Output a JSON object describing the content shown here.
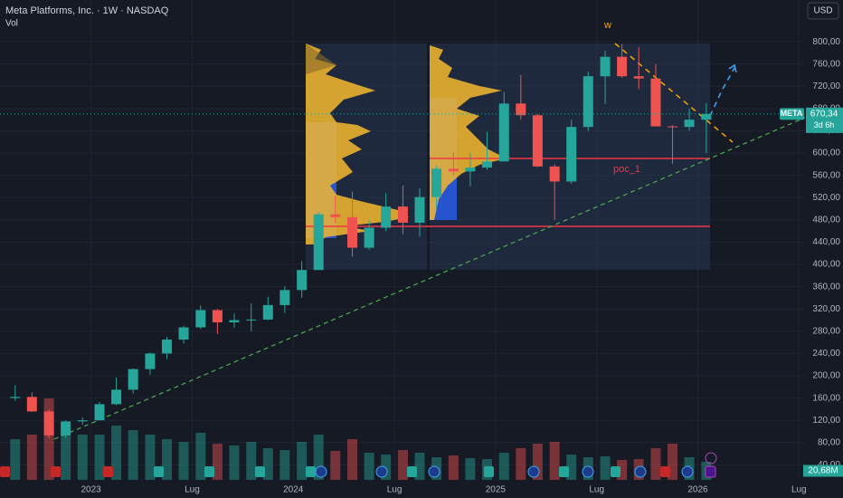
{
  "chart_data": {
    "type": "candlestick",
    "title": "Meta Platforms, Inc. · 1W · NASDAQ",
    "volume_title": "Vol",
    "currency": "USD",
    "symbol": "META",
    "countdown": "3d 6h",
    "annotations": [
      "poc_1",
      "w"
    ],
    "x": [
      2022.625,
      2022.708,
      2022.792,
      2022.875,
      2022.958,
      2023.042,
      2023.125,
      2023.208,
      2023.292,
      2023.375,
      2023.458,
      2023.542,
      2023.625,
      2023.708,
      2023.792,
      2023.875,
      2023.958,
      2024.042,
      2024.125,
      2024.208,
      2024.292,
      2024.375,
      2024.458,
      2024.542,
      2024.625,
      2024.708,
      2024.792,
      2024.875,
      2024.958,
      2025.042,
      2025.125,
      2025.208,
      2025.292,
      2025.375,
      2025.458,
      2025.542,
      2025.625,
      2025.708,
      2025.792,
      2025.875,
      2025.958,
      2026.042
    ],
    "series": [
      {
        "name": "META",
        "open": [
          160,
          162,
          136,
          93,
          118,
          120,
          149,
          175,
          212,
          240,
          265,
          287,
          318,
          296,
          300,
          301,
          327,
          354,
          390,
          490,
          485,
          430,
          466,
          504,
          475,
          521,
          572,
          567,
          574,
          585,
          689,
          668,
          576,
          549,
          647,
          738,
          773,
          738,
          734,
          648,
          647,
          660
        ],
        "high": [
          183,
          170,
          140,
          120,
          125,
          153,
          197,
          213,
          242,
          270,
          290,
          326,
          320,
          312,
          330,
          342,
          361,
          406,
          494,
          523,
          531,
          480,
          528,
          542,
          537,
          577,
          602,
          600,
          638,
          710,
          740,
          670,
          580,
          660,
          746,
          784,
          796,
          790,
          760,
          650,
          680,
          690
        ],
        "low": [
          155,
          135,
          88,
          88,
          112,
          120,
          147,
          168,
          202,
          230,
          258,
          284,
          275,
          286,
          280,
          300,
          313,
          340,
          393,
          474,
          414,
          426,
          460,
          454,
          450,
          500,
          560,
          540,
          570,
          590,
          660,
          575,
          480,
          545,
          640,
          688,
          735,
          715,
          648,
          581,
          640,
          600
        ],
        "close": [
          162,
          136,
          93,
          118,
          120,
          149,
          175,
          212,
          240,
          265,
          287,
          318,
          296,
          300,
          301,
          327,
          354,
          390,
          490,
          485,
          430,
          466,
          504,
          475,
          521,
          572,
          567,
          574,
          585,
          689,
          668,
          576,
          549,
          647,
          738,
          773,
          738,
          734,
          648,
          647,
          660,
          670.34
        ]
      }
    ],
    "volume": {
      "values": [
        450,
        500,
        900,
        600,
        500,
        500,
        600,
        550,
        500,
        450,
        420,
        520,
        400,
        380,
        420,
        350,
        330,
        420,
        500,
        320,
        450,
        300,
        280,
        330,
        300,
        250,
        270,
        240,
        230,
        300,
        350,
        400,
        420,
        280,
        250,
        260,
        220,
        230,
        350,
        400,
        250,
        200
      ],
      "last": {
        "value": 20.68,
        "label": "20,68M"
      }
    },
    "last_price": {
      "value": 670.34,
      "label": "670,34"
    },
    "ylim": [
      13,
      875
    ],
    "yticks": [
      {
        "value": 40,
        "label": "40,00"
      },
      {
        "value": 80,
        "label": "80,00"
      },
      {
        "value": 120,
        "label": "120,00"
      },
      {
        "value": 160,
        "label": "160,00"
      },
      {
        "value": 200,
        "label": "200,00"
      },
      {
        "value": 240,
        "label": "240,00"
      },
      {
        "value": 280,
        "label": "280,00"
      },
      {
        "value": 320,
        "label": "320,00"
      },
      {
        "value": 360,
        "label": "360,00"
      },
      {
        "value": 400,
        "label": "400,00"
      },
      {
        "value": 440,
        "label": "440,00"
      },
      {
        "value": 480,
        "label": "480,00"
      },
      {
        "value": 520,
        "label": "520,00"
      },
      {
        "value": 560,
        "label": "560,00"
      },
      {
        "value": 600,
        "label": "600,00"
      },
      {
        "value": 640,
        "label": "640,00"
      },
      {
        "value": 680,
        "label": "680,00"
      },
      {
        "value": 720,
        "label": "720,00"
      },
      {
        "value": 760,
        "label": "760,00"
      },
      {
        "value": 800,
        "label": "800,00"
      }
    ],
    "xlim": [
      2022.55,
      2026.53
    ],
    "xticks": [
      {
        "value": 2023,
        "label": "2023"
      },
      {
        "value": 2023.5,
        "label": "Lug"
      },
      {
        "value": 2024,
        "label": "2024"
      },
      {
        "value": 2024.5,
        "label": "Lug"
      },
      {
        "value": 2025,
        "label": "2025"
      },
      {
        "value": 2025.5,
        "label": "Lug"
      },
      {
        "value": 2026,
        "label": "2026"
      },
      {
        "value": 2026.5,
        "label": "Lug"
      }
    ],
    "grid": true,
    "up_color": "#26a69a",
    "down_color": "#ef5350"
  }
}
